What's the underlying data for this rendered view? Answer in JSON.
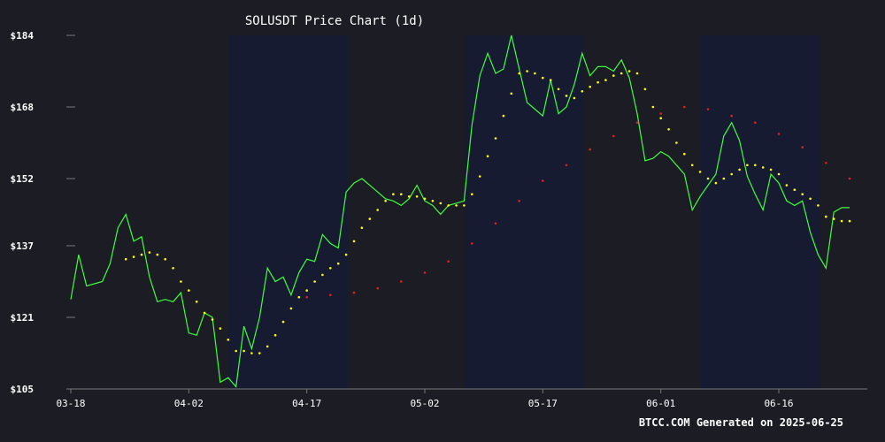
{
  "colors": {
    "background": "#1c1c24",
    "plot_band": "#171c33",
    "axis": "#7a7a7a",
    "text": "#ffffff",
    "price": "#3dff3d",
    "ma_short": "#ffff00",
    "ma_long": "#e02020"
  },
  "footer_text": "BTCC.COM Generated on 2025-06-25",
  "chart_data": {
    "type": "line",
    "title": "SOLUSDT Price Chart (1d)",
    "xlabel": "",
    "ylabel": "",
    "ylim": [
      105,
      184
    ],
    "y_ticks": [
      105,
      121,
      137,
      152,
      168,
      184
    ],
    "y_tick_labels": [
      "$105",
      "$121",
      "$137",
      "$152",
      "$168",
      "$184"
    ],
    "x_ticks": [
      "03-18",
      "04-02",
      "04-17",
      "05-02",
      "05-17",
      "06-01",
      "06-16"
    ],
    "x_start": "2025-03-18",
    "x_end": "2025-06-25",
    "grid": false,
    "series": [
      {
        "name": "",
        "style": "solid",
        "color": "#3dff3d",
        "points": [
          [
            "2025-03-18",
            125
          ],
          [
            "2025-03-19",
            135
          ],
          [
            "2025-03-20",
            128
          ],
          [
            "2025-03-21",
            128.5
          ],
          [
            "2025-03-22",
            129
          ],
          [
            "2025-03-23",
            133
          ],
          [
            "2025-03-24",
            141
          ],
          [
            "2025-03-25",
            144
          ],
          [
            "2025-03-26",
            138
          ],
          [
            "2025-03-27",
            139
          ],
          [
            "2025-03-28",
            130
          ],
          [
            "2025-03-29",
            124.5
          ],
          [
            "2025-03-30",
            125
          ],
          [
            "2025-03-31",
            124.5
          ],
          [
            "2025-04-01",
            126.5
          ],
          [
            "2025-04-02",
            117.5
          ],
          [
            "2025-04-03",
            117
          ],
          [
            "2025-04-04",
            122
          ],
          [
            "2025-04-05",
            121
          ],
          [
            "2025-04-06",
            106.5
          ],
          [
            "2025-04-07",
            107.5
          ],
          [
            "2025-04-08",
            105.5
          ],
          [
            "2025-04-09",
            119
          ],
          [
            "2025-04-10",
            114
          ],
          [
            "2025-04-11",
            121
          ],
          [
            "2025-04-12",
            132
          ],
          [
            "2025-04-13",
            129
          ],
          [
            "2025-04-14",
            130
          ],
          [
            "2025-04-15",
            126
          ],
          [
            "2025-04-16",
            131
          ],
          [
            "2025-04-17",
            134
          ],
          [
            "2025-04-18",
            133.5
          ],
          [
            "2025-04-19",
            139.5
          ],
          [
            "2025-04-20",
            137.5
          ],
          [
            "2025-04-21",
            136.5
          ],
          [
            "2025-04-22",
            149
          ],
          [
            "2025-04-23",
            151
          ],
          [
            "2025-04-24",
            152
          ],
          [
            "2025-04-25",
            150.5
          ],
          [
            "2025-04-26",
            149
          ],
          [
            "2025-04-27",
            147.5
          ],
          [
            "2025-04-28",
            147
          ],
          [
            "2025-04-29",
            146
          ],
          [
            "2025-04-30",
            147.5
          ],
          [
            "2025-05-01",
            150.5
          ],
          [
            "2025-05-02",
            147
          ],
          [
            "2025-05-03",
            146
          ],
          [
            "2025-05-04",
            144
          ],
          [
            "2025-05-05",
            146
          ],
          [
            "2025-05-06",
            146.5
          ],
          [
            "2025-05-07",
            147
          ],
          [
            "2025-05-08",
            164
          ],
          [
            "2025-05-09",
            175
          ],
          [
            "2025-05-10",
            180
          ],
          [
            "2025-05-11",
            175.5
          ],
          [
            "2025-05-12",
            176.5
          ],
          [
            "2025-05-13",
            184
          ],
          [
            "2025-05-14",
            176.5
          ],
          [
            "2025-05-15",
            169
          ],
          [
            "2025-05-16",
            167.5
          ],
          [
            "2025-05-17",
            166
          ],
          [
            "2025-05-18",
            174
          ],
          [
            "2025-05-19",
            166.5
          ],
          [
            "2025-05-20",
            168
          ],
          [
            "2025-05-21",
            173
          ],
          [
            "2025-05-22",
            180
          ],
          [
            "2025-05-23",
            175
          ],
          [
            "2025-05-24",
            177
          ],
          [
            "2025-05-25",
            177
          ],
          [
            "2025-05-26",
            176
          ],
          [
            "2025-05-27",
            178.5
          ],
          [
            "2025-05-28",
            174.5
          ],
          [
            "2025-05-29",
            166.5
          ],
          [
            "2025-05-30",
            156
          ],
          [
            "2025-05-31",
            156.5
          ],
          [
            "2025-06-01",
            158
          ],
          [
            "2025-06-02",
            157
          ],
          [
            "2025-06-03",
            155
          ],
          [
            "2025-06-04",
            153
          ],
          [
            "2025-06-05",
            145
          ],
          [
            "2025-06-06",
            148
          ],
          [
            "2025-06-07",
            150.5
          ],
          [
            "2025-06-08",
            153
          ],
          [
            "2025-06-09",
            161.5
          ],
          [
            "2025-06-10",
            164.5
          ],
          [
            "2025-06-11",
            160.5
          ],
          [
            "2025-06-12",
            152.5
          ],
          [
            "2025-06-13",
            148.5
          ],
          [
            "2025-06-14",
            145
          ],
          [
            "2025-06-15",
            153
          ],
          [
            "2025-06-16",
            151
          ],
          [
            "2025-06-17",
            147
          ],
          [
            "2025-06-18",
            146
          ],
          [
            "2025-06-19",
            147
          ],
          [
            "2025-06-20",
            140
          ],
          [
            "2025-06-21",
            135
          ],
          [
            "2025-06-22",
            132
          ],
          [
            "2025-06-23",
            144.5
          ],
          [
            "2025-06-24",
            145.5
          ],
          [
            "2025-06-25",
            145.5
          ]
        ]
      },
      {
        "name": "",
        "style": "dotted",
        "color": "#ffff00",
        "points": [
          [
            "2025-03-25",
            134
          ],
          [
            "2025-03-26",
            134.5
          ],
          [
            "2025-03-27",
            135
          ],
          [
            "2025-03-28",
            135.5
          ],
          [
            "2025-03-29",
            135
          ],
          [
            "2025-03-30",
            134
          ],
          [
            "2025-03-31",
            132
          ],
          [
            "2025-04-01",
            129
          ],
          [
            "2025-04-02",
            127
          ],
          [
            "2025-04-03",
            124.5
          ],
          [
            "2025-04-04",
            122
          ],
          [
            "2025-04-05",
            120.5
          ],
          [
            "2025-04-06",
            118.5
          ],
          [
            "2025-04-07",
            116
          ],
          [
            "2025-04-08",
            113.5
          ],
          [
            "2025-04-09",
            113.5
          ],
          [
            "2025-04-10",
            113
          ],
          [
            "2025-04-11",
            113
          ],
          [
            "2025-04-12",
            114.5
          ],
          [
            "2025-04-13",
            117
          ],
          [
            "2025-04-14",
            120
          ],
          [
            "2025-04-15",
            123
          ],
          [
            "2025-04-16",
            125.5
          ],
          [
            "2025-04-17",
            127
          ],
          [
            "2025-04-18",
            129
          ],
          [
            "2025-04-19",
            130.5
          ],
          [
            "2025-04-20",
            132
          ],
          [
            "2025-04-21",
            133
          ],
          [
            "2025-04-22",
            135
          ],
          [
            "2025-04-23",
            138
          ],
          [
            "2025-04-24",
            141
          ],
          [
            "2025-04-25",
            143
          ],
          [
            "2025-04-26",
            145
          ],
          [
            "2025-04-27",
            147
          ],
          [
            "2025-04-28",
            148.5
          ],
          [
            "2025-04-29",
            148.5
          ],
          [
            "2025-04-30",
            148
          ],
          [
            "2025-05-01",
            148
          ],
          [
            "2025-05-02",
            147.5
          ],
          [
            "2025-05-03",
            147
          ],
          [
            "2025-05-04",
            146.5
          ],
          [
            "2025-05-05",
            146
          ],
          [
            "2025-05-06",
            146
          ],
          [
            "2025-05-07",
            146
          ],
          [
            "2025-05-08",
            148.5
          ],
          [
            "2025-05-09",
            152.5
          ],
          [
            "2025-05-10",
            157
          ],
          [
            "2025-05-11",
            161
          ],
          [
            "2025-05-12",
            166
          ],
          [
            "2025-05-13",
            171
          ],
          [
            "2025-05-14",
            175.5
          ],
          [
            "2025-05-15",
            176
          ],
          [
            "2025-05-16",
            175.5
          ],
          [
            "2025-05-17",
            174.5
          ],
          [
            "2025-05-18",
            174
          ],
          [
            "2025-05-19",
            172
          ],
          [
            "2025-05-20",
            170.5
          ],
          [
            "2025-05-21",
            170
          ],
          [
            "2025-05-22",
            171.5
          ],
          [
            "2025-05-23",
            172.5
          ],
          [
            "2025-05-24",
            173.5
          ],
          [
            "2025-05-25",
            174
          ],
          [
            "2025-05-26",
            175
          ],
          [
            "2025-05-27",
            175.5
          ],
          [
            "2025-05-28",
            176
          ],
          [
            "2025-05-29",
            175.5
          ],
          [
            "2025-05-30",
            172
          ],
          [
            "2025-05-31",
            168
          ],
          [
            "2025-06-01",
            165.5
          ],
          [
            "2025-06-02",
            163
          ],
          [
            "2025-06-03",
            160
          ],
          [
            "2025-06-04",
            157.5
          ],
          [
            "2025-06-05",
            155
          ],
          [
            "2025-06-06",
            153.5
          ],
          [
            "2025-06-07",
            152
          ],
          [
            "2025-06-08",
            151
          ],
          [
            "2025-06-09",
            152
          ],
          [
            "2025-06-10",
            153
          ],
          [
            "2025-06-11",
            154
          ],
          [
            "2025-06-12",
            155
          ],
          [
            "2025-06-13",
            155
          ],
          [
            "2025-06-14",
            154.5
          ],
          [
            "2025-06-15",
            154
          ],
          [
            "2025-06-16",
            153
          ],
          [
            "2025-06-17",
            150.5
          ],
          [
            "2025-06-18",
            149.5
          ],
          [
            "2025-06-19",
            148.5
          ],
          [
            "2025-06-20",
            147.5
          ],
          [
            "2025-06-21",
            146
          ],
          [
            "2025-06-22",
            143.5
          ],
          [
            "2025-06-23",
            143
          ],
          [
            "2025-06-24",
            142.5
          ],
          [
            "2025-06-25",
            142.5
          ]
        ]
      },
      {
        "name": "",
        "style": "dotted",
        "color": "#e02020",
        "points": [
          [
            "2025-04-17",
            125.5
          ],
          [
            "2025-04-20",
            126
          ],
          [
            "2025-04-23",
            126.5
          ],
          [
            "2025-04-26",
            127.5
          ],
          [
            "2025-04-29",
            129
          ],
          [
            "2025-05-02",
            131
          ],
          [
            "2025-05-05",
            133.5
          ],
          [
            "2025-05-08",
            137.5
          ],
          [
            "2025-05-11",
            142
          ],
          [
            "2025-05-14",
            147
          ],
          [
            "2025-05-17",
            151.5
          ],
          [
            "2025-05-20",
            155
          ],
          [
            "2025-05-23",
            158.5
          ],
          [
            "2025-05-26",
            161.5
          ],
          [
            "2025-05-29",
            164.5
          ],
          [
            "2025-06-01",
            166.5
          ],
          [
            "2025-06-04",
            168
          ],
          [
            "2025-06-07",
            167.5
          ],
          [
            "2025-06-10",
            166
          ],
          [
            "2025-06-13",
            164.5
          ],
          [
            "2025-06-16",
            162
          ],
          [
            "2025-06-19",
            159
          ],
          [
            "2025-06-22",
            155.5
          ],
          [
            "2025-06-25",
            152
          ]
        ]
      }
    ]
  }
}
